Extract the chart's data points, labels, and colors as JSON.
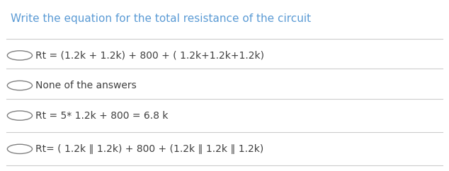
{
  "title": "Write the equation for the total resistance of the circuit",
  "title_color": "#5b9bd5",
  "title_fontsize": 11,
  "options": [
    "Rt = (1.2k + 1.2k) + 800 + ( 1.2k+1.2k+1.2k)",
    "None of the answers",
    "Rt = 5* 1.2k + 800 = 6.8 k",
    "Rt= ( 1.2k ∥ 1.2k) + 800 + (1.2k ∥ 1.2k ∥ 1.2k)"
  ],
  "option_color": "#404040",
  "option_fontsize": 10,
  "background_color": "#ffffff",
  "line_color": "#cccccc",
  "circle_color": "#808080"
}
